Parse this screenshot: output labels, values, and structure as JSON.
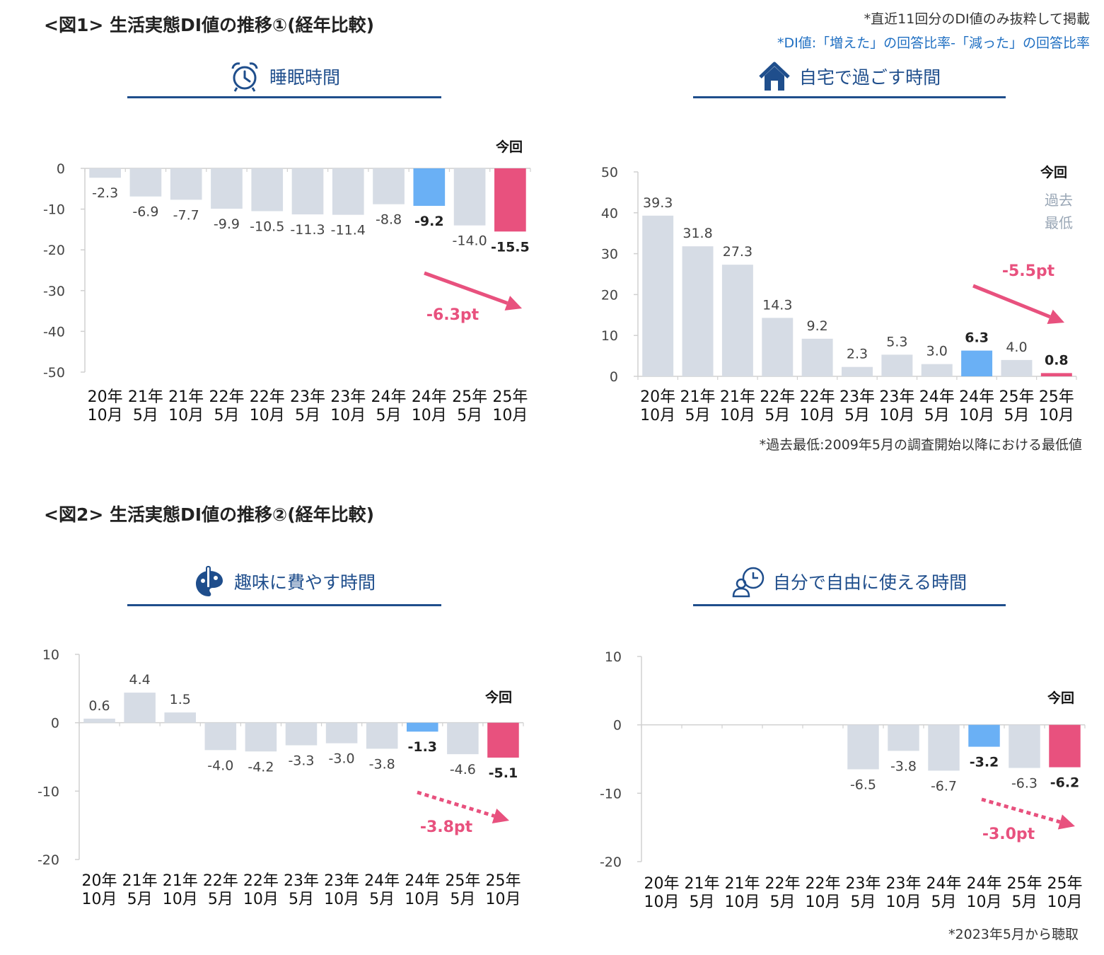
{
  "colors": {
    "bar": "#d6dce5",
    "prev_year": "#6ab0f5",
    "current": "#e8517e",
    "accent": "#1f4e8c",
    "note_blue": "#1f6fc2"
  },
  "fig1": {
    "title": "<図1> 生活実態DI値の推移①(経年比較)"
  },
  "fig2": {
    "title": "<図2> 生活実態DI値の推移②(経年比較)"
  },
  "notes": {
    "top1": "*直近11回分のDI値のみ抜粋して掲載",
    "top2": "*DI値:「増えた」の回答比率-「減った」の回答比率",
    "lowest_def": "*過去最低:2009年5月の調査開始以降における最低値",
    "since2023": "*2023年5月から聴取"
  },
  "chart_data": [
    {
      "id": "sleep",
      "type": "bar",
      "title": "睡眠時間",
      "icon": "alarm-clock-icon",
      "categories": [
        [
          "20年",
          "10月"
        ],
        [
          "21年",
          "5月"
        ],
        [
          "21年",
          "10月"
        ],
        [
          "22年",
          "5月"
        ],
        [
          "22年",
          "10月"
        ],
        [
          "23年",
          "5月"
        ],
        [
          "23年",
          "10月"
        ],
        [
          "24年",
          "5月"
        ],
        [
          "24年",
          "10月"
        ],
        [
          "25年",
          "5月"
        ],
        [
          "25年",
          "10月"
        ]
      ],
      "values": [
        -2.3,
        -6.9,
        -7.7,
        -9.9,
        -10.5,
        -11.3,
        -11.4,
        -8.8,
        -9.2,
        -14.0,
        -15.5
      ],
      "value_labels": [
        "-2.3",
        "-6.9",
        "-7.7",
        "-9.9",
        "-10.5",
        "-11.3",
        "-11.4",
        "-8.8",
        "-9.2",
        "-14.0",
        "-15.5"
      ],
      "ylim": [
        -50,
        0
      ],
      "yticks": [
        0,
        -10,
        -20,
        -30,
        -40,
        -50
      ],
      "ytick_labels": [
        "0",
        "-10",
        "-20",
        "-30",
        "-40",
        "-50"
      ],
      "current_label": "今回",
      "delta_label": "-6.3pt",
      "arrow": "solid"
    },
    {
      "id": "home",
      "type": "bar",
      "title": "自宅で過ごす時間",
      "icon": "house-icon",
      "categories": [
        [
          "20年",
          "10月"
        ],
        [
          "21年",
          "5月"
        ],
        [
          "21年",
          "10月"
        ],
        [
          "22年",
          "5月"
        ],
        [
          "22年",
          "10月"
        ],
        [
          "23年",
          "5月"
        ],
        [
          "23年",
          "10月"
        ],
        [
          "24年",
          "5月"
        ],
        [
          "24年",
          "10月"
        ],
        [
          "25年",
          "5月"
        ],
        [
          "25年",
          "10月"
        ]
      ],
      "values": [
        39.3,
        31.8,
        27.3,
        14.3,
        9.2,
        2.3,
        5.3,
        3.0,
        6.3,
        4.0,
        0.8
      ],
      "value_labels": [
        "39.3",
        "31.8",
        "27.3",
        "14.3",
        "9.2",
        "2.3",
        "5.3",
        "3.0",
        "6.3",
        "4.0",
        "0.8"
      ],
      "ylim": [
        0,
        50
      ],
      "yticks": [
        50,
        40,
        30,
        20,
        10,
        0
      ],
      "ytick_labels": [
        "50",
        "40",
        "30",
        "20",
        "10",
        "0"
      ],
      "current_label": "今回",
      "lowest_label": [
        "過去",
        "最低"
      ],
      "delta_label": "-5.5pt",
      "arrow": "solid"
    },
    {
      "id": "hobby",
      "type": "bar",
      "title": "趣味に費やす時間",
      "icon": "palette-icon",
      "categories": [
        [
          "20年",
          "10月"
        ],
        [
          "21年",
          "5月"
        ],
        [
          "21年",
          "10月"
        ],
        [
          "22年",
          "5月"
        ],
        [
          "22年",
          "10月"
        ],
        [
          "23年",
          "5月"
        ],
        [
          "23年",
          "10月"
        ],
        [
          "24年",
          "5月"
        ],
        [
          "24年",
          "10月"
        ],
        [
          "25年",
          "5月"
        ],
        [
          "25年",
          "10月"
        ]
      ],
      "values": [
        0.6,
        4.4,
        1.5,
        -4.0,
        -4.2,
        -3.3,
        -3.0,
        -3.8,
        -1.3,
        -4.6,
        -5.1
      ],
      "value_labels": [
        "0.6",
        "4.4",
        "1.5",
        "-4.0",
        "-4.2",
        "-3.3",
        "-3.0",
        "-3.8",
        "-1.3",
        "-4.6",
        "-5.1"
      ],
      "ylim": [
        -20,
        10
      ],
      "yticks": [
        10,
        0,
        -10,
        -20
      ],
      "ytick_labels": [
        "10",
        "0",
        "-10",
        "-20"
      ],
      "current_label": "今回",
      "delta_label": "-3.8pt",
      "arrow": "dotted"
    },
    {
      "id": "free",
      "type": "bar",
      "title": "自分で自由に使える時間",
      "icon": "person-clock-icon",
      "categories": [
        [
          "20年",
          "10月"
        ],
        [
          "21年",
          "5月"
        ],
        [
          "21年",
          "10月"
        ],
        [
          "22年",
          "5月"
        ],
        [
          "22年",
          "10月"
        ],
        [
          "23年",
          "5月"
        ],
        [
          "23年",
          "10月"
        ],
        [
          "24年",
          "5月"
        ],
        [
          "24年",
          "10月"
        ],
        [
          "25年",
          "5月"
        ],
        [
          "25年",
          "10月"
        ]
      ],
      "values": [
        null,
        null,
        null,
        null,
        null,
        -6.5,
        -3.8,
        -6.7,
        -3.2,
        -6.3,
        -6.2
      ],
      "value_labels": [
        "",
        "",
        "",
        "",
        "",
        "-6.5",
        "-3.8",
        "-6.7",
        "-3.2",
        "-6.3",
        "-6.2"
      ],
      "ylim": [
        -20,
        10
      ],
      "yticks": [
        10,
        0,
        -10,
        -20
      ],
      "ytick_labels": [
        "10",
        "0",
        "-10",
        "-20"
      ],
      "current_label": "今回",
      "delta_label": "-3.0pt",
      "arrow": "dotted"
    }
  ]
}
